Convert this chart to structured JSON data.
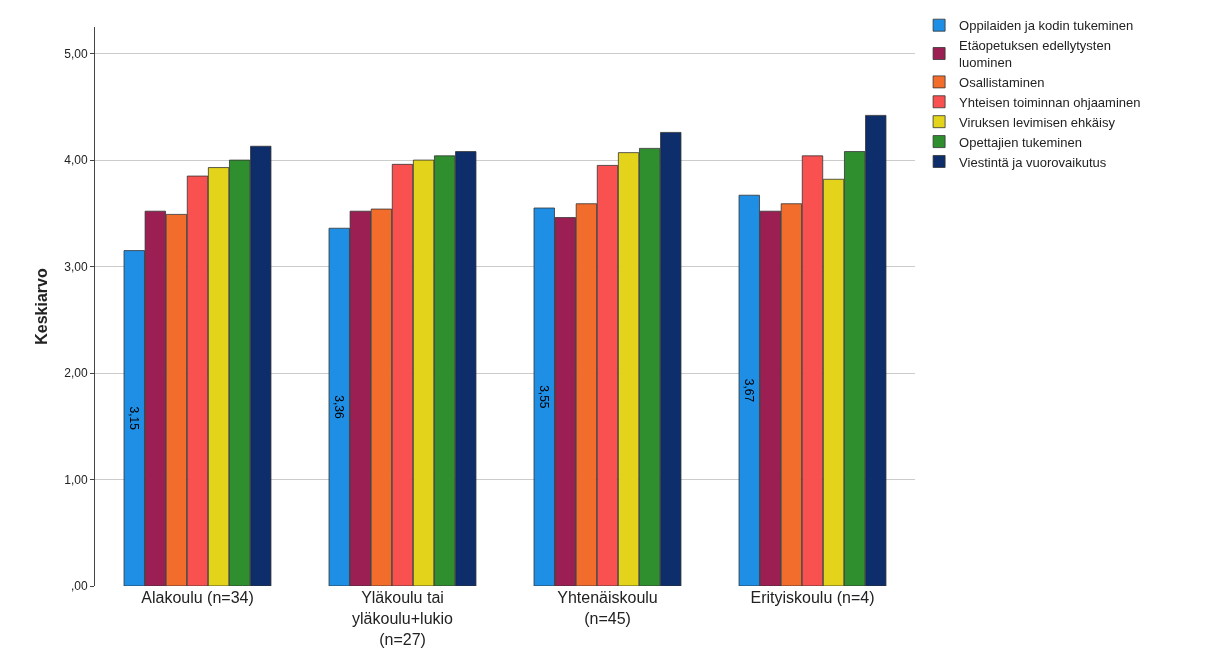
{
  "chart_data": {
    "type": "bar",
    "ylabel": "Keskiarvo",
    "categories": [
      "Alakoulu (n=34)",
      "Yläkoulu tai\nyläkoulu+lukio\n(n=27)",
      "Yhtenäiskoulu\n(n=45)",
      "Erityiskoulu (n=4)"
    ],
    "series": [
      {
        "name": "Oppilaiden ja kodin tukeminen",
        "color": "#1f8fe6",
        "values": [
          3.15,
          3.36,
          3.55,
          3.67
        ],
        "value_labels": [
          "3,15",
          "3,36",
          "3,55",
          "3,67"
        ]
      },
      {
        "name": "Etäopetuksen edellytysten\nluominen",
        "color": "#9b1f52",
        "values": [
          3.52,
          3.52,
          3.46,
          3.52
        ]
      },
      {
        "name": "Osallistaminen",
        "color": "#f26c2b",
        "values": [
          3.49,
          3.54,
          3.59,
          3.59
        ]
      },
      {
        "name": "Yhteisen toiminnan ohjaaminen",
        "color": "#f9514f",
        "values": [
          3.85,
          3.96,
          3.95,
          4.04
        ]
      },
      {
        "name": "Viruksen levimisen ehkäisy",
        "color": "#e3d31a",
        "values": [
          3.93,
          4.0,
          4.07,
          3.82
        ]
      },
      {
        "name": "Opettajien tukeminen",
        "color": "#2f8f2f",
        "values": [
          4.0,
          4.04,
          4.11,
          4.08
        ]
      },
      {
        "name": "Viestintä ja vuorovaikutus",
        "color": "#0d2d6b",
        "values": [
          4.13,
          4.08,
          4.26,
          4.42
        ]
      }
    ],
    "ylim": [
      0,
      5.25
    ],
    "yticks": [
      {
        "value": 0,
        "label": ",00"
      },
      {
        "value": 1,
        "label": "1,00"
      },
      {
        "value": 2,
        "label": "2,00"
      },
      {
        "value": 3,
        "label": "3,00"
      },
      {
        "value": 4,
        "label": "4,00"
      },
      {
        "value": 5,
        "label": "5,00"
      }
    ],
    "grid": "y",
    "legend": "top right"
  }
}
